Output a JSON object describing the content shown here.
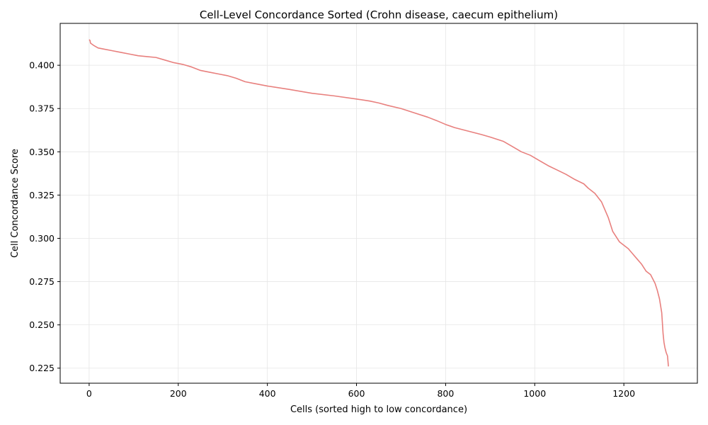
{
  "chart_data": {
    "type": "line",
    "title": "Cell-Level Concordance Sorted (Crohn disease, caecum epithelium)",
    "xlabel": "Cells (sorted high to low concordance)",
    "ylabel": "Cell Concordance Score",
    "xlim": [
      -65,
      1365
    ],
    "ylim": [
      0.2163,
      0.4242
    ],
    "xticks": [
      0,
      200,
      400,
      600,
      800,
      1000,
      1200
    ],
    "xtick_labels": [
      "0",
      "200",
      "400",
      "600",
      "800",
      "1000",
      "1200"
    ],
    "yticks": [
      0.225,
      0.25,
      0.275,
      0.3,
      0.325,
      0.35,
      0.375,
      0.4
    ],
    "ytick_labels": [
      "0.225",
      "0.250",
      "0.275",
      "0.300",
      "0.325",
      "0.350",
      "0.375",
      "0.400"
    ],
    "grid": true,
    "line_color": "#e8807e",
    "series": [
      {
        "x": [
          0,
          2,
          3,
          10,
          20,
          30,
          50,
          70,
          90,
          110,
          130,
          150,
          170,
          190,
          210,
          230,
          250,
          270,
          290,
          310,
          330,
          350,
          370,
          400,
          450,
          500,
          550,
          600,
          630,
          650,
          670,
          700,
          730,
          760,
          780,
          800,
          820,
          850,
          880,
          900,
          930,
          950,
          970,
          990,
          1010,
          1030,
          1050,
          1070,
          1090,
          1110,
          1120,
          1135,
          1150,
          1160,
          1165,
          1170,
          1175,
          1180,
          1190,
          1200,
          1210,
          1220,
          1230,
          1240,
          1250,
          1260,
          1270,
          1275,
          1280,
          1285,
          1288,
          1290,
          1292,
          1295,
          1298,
          1300
        ],
        "y": [
          0.4148,
          0.4143,
          0.4128,
          0.4115,
          0.41,
          0.4095,
          0.4085,
          0.4075,
          0.4065,
          0.4055,
          0.405,
          0.4045,
          0.403,
          0.4015,
          0.4005,
          0.399,
          0.397,
          0.396,
          0.395,
          0.394,
          0.3925,
          0.3905,
          0.3895,
          0.388,
          0.386,
          0.3838,
          0.3823,
          0.3805,
          0.3793,
          0.3782,
          0.3768,
          0.375,
          0.3725,
          0.37,
          0.368,
          0.3658,
          0.364,
          0.362,
          0.36,
          0.3585,
          0.356,
          0.353,
          0.35,
          0.348,
          0.345,
          0.342,
          0.3395,
          0.337,
          0.334,
          0.3315,
          0.329,
          0.326,
          0.321,
          0.315,
          0.312,
          0.308,
          0.304,
          0.302,
          0.298,
          0.296,
          0.294,
          0.291,
          0.288,
          0.285,
          0.281,
          0.279,
          0.274,
          0.27,
          0.265,
          0.257,
          0.245,
          0.24,
          0.237,
          0.234,
          0.232,
          0.226
        ]
      }
    ]
  }
}
